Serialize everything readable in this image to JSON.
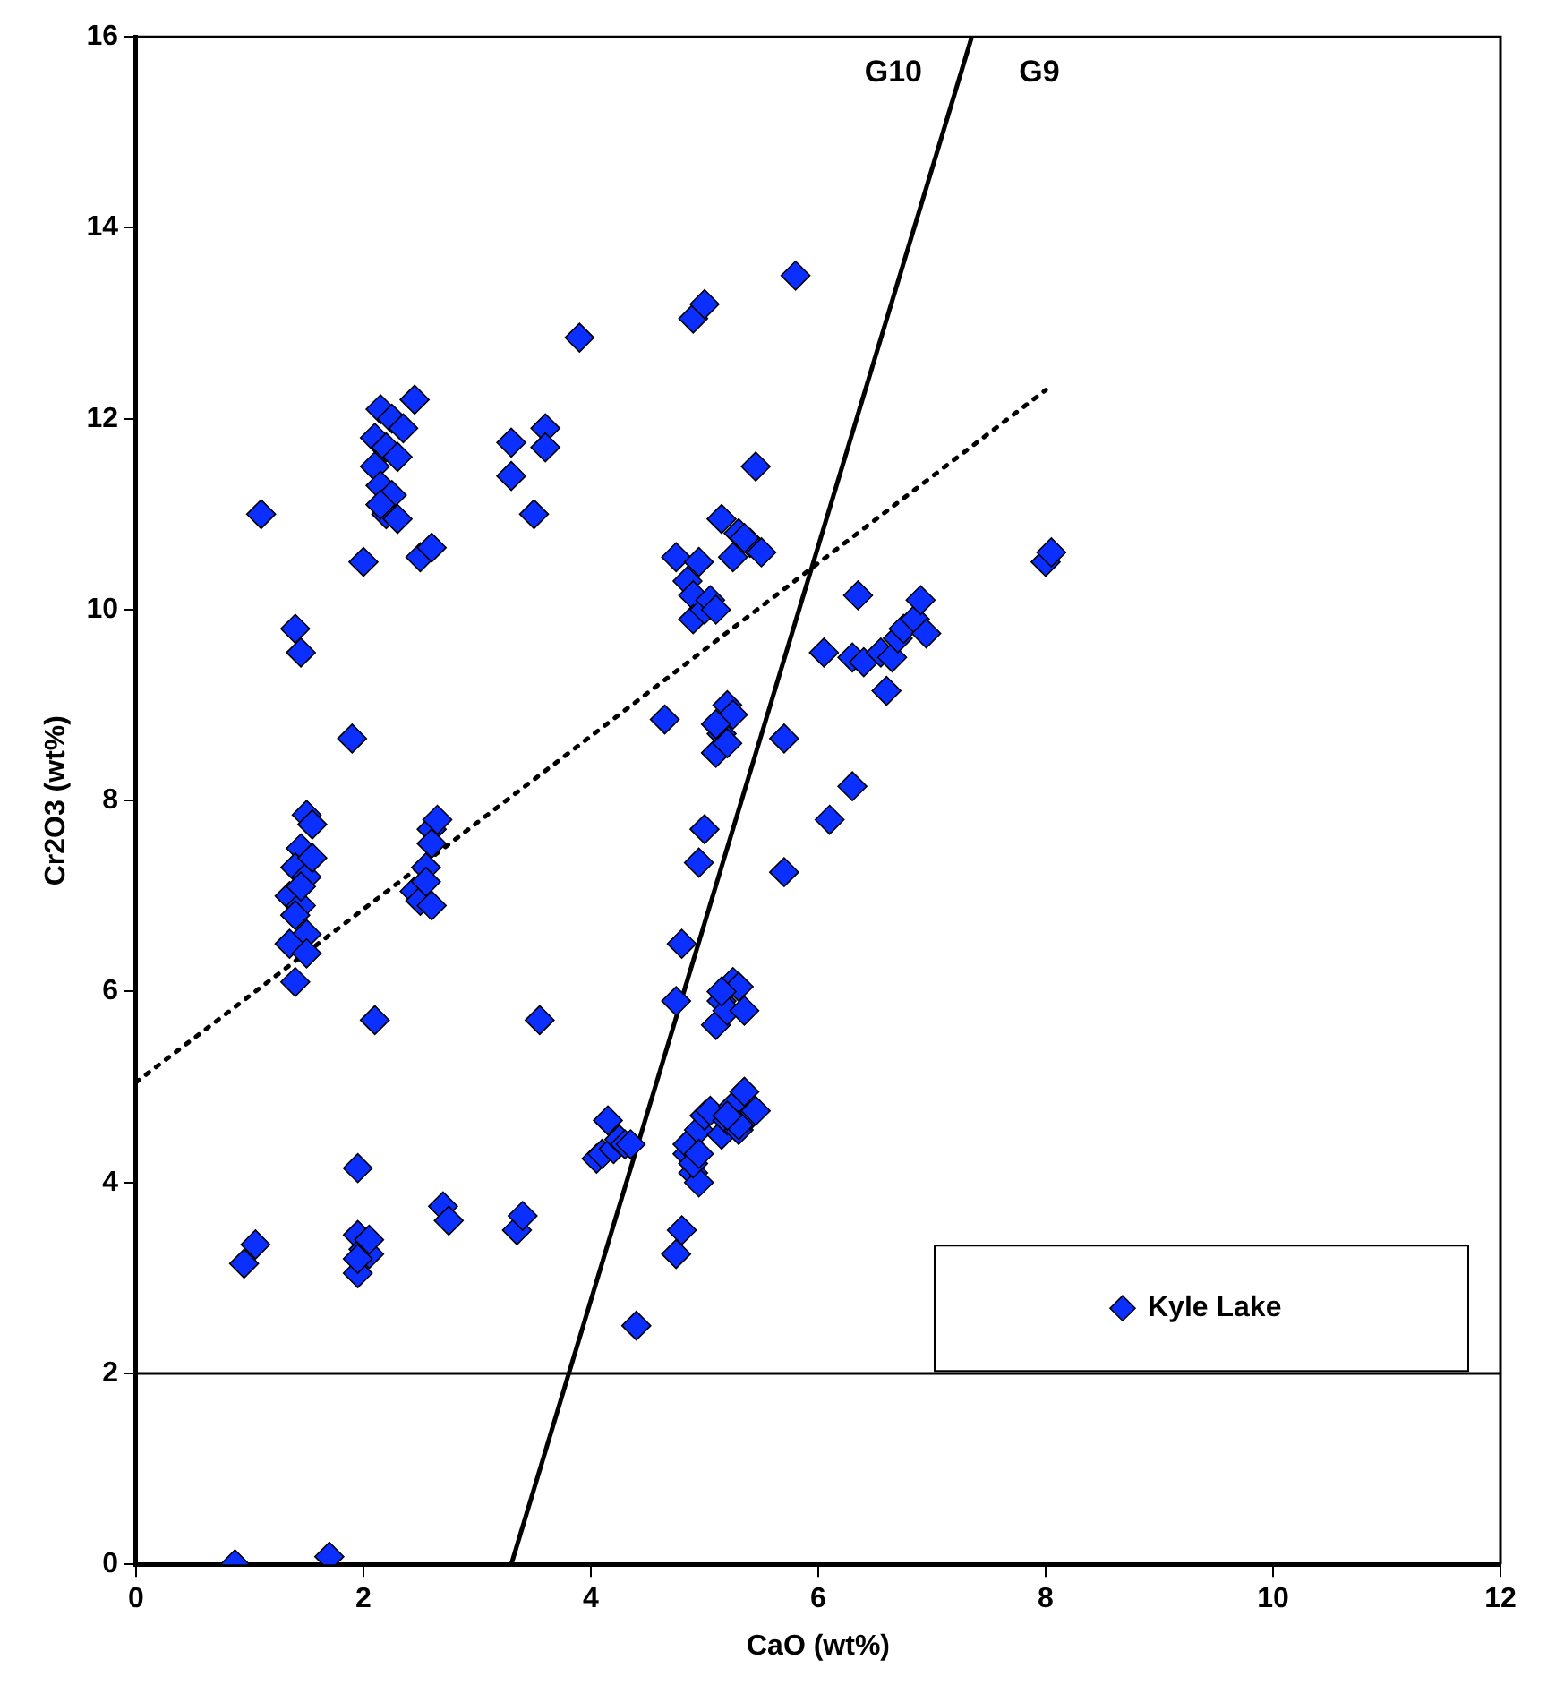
{
  "chart_data": {
    "type": "scatter",
    "xlabel": "CaO (wt%)",
    "ylabel": "Cr2O3 (wt%)",
    "xlim": [
      0,
      12
    ],
    "xticks": [
      0,
      2,
      4,
      6,
      8,
      10,
      12
    ],
    "ylim": [
      0,
      16
    ],
    "yticks": [
      0,
      2,
      4,
      6,
      8,
      10,
      12,
      14,
      16
    ],
    "grid": false,
    "legend": "bottom right",
    "annotations": [
      "G10",
      "G9"
    ],
    "ref_lines": [
      {
        "axis": "y",
        "value": 2,
        "color": "#000000",
        "line_style": "solid"
      }
    ],
    "series": [
      {
        "name": "Kyle Lake",
        "color": "#0b2fff",
        "marker": "diamond",
        "x": [
          0.87,
          1.7,
          0.95,
          1.05,
          1.1,
          1.4,
          1.45,
          1.5,
          1.55,
          1.45,
          1.4,
          1.5,
          1.35,
          1.45,
          1.4,
          1.5,
          1.35,
          1.5,
          1.4,
          1.45,
          1.55,
          1.9,
          1.95,
          1.95,
          2.0,
          1.95,
          2.05,
          2.05,
          1.95,
          2.0,
          2.1,
          2.15,
          2.25,
          2.1,
          2.2,
          2.1,
          2.3,
          2.15,
          2.25,
          2.2,
          2.3,
          2.15,
          2.35,
          2.45,
          2.5,
          2.6,
          2.6,
          2.65,
          2.6,
          2.45,
          2.5,
          2.6,
          2.55,
          2.55,
          2.7,
          2.75,
          3.35,
          3.4,
          3.3,
          3.3,
          3.5,
          3.6,
          3.6,
          3.9,
          3.55,
          4.05,
          4.1,
          4.15,
          4.2,
          4.25,
          4.3,
          4.4,
          4.35,
          4.65,
          4.75,
          4.8,
          4.8,
          4.75,
          4.85,
          4.9,
          4.95,
          4.85,
          4.95,
          5.0,
          4.9,
          4.95,
          5.05,
          4.75,
          4.85,
          4.9,
          4.95,
          4.9,
          5.0,
          5.05,
          5.1,
          4.9,
          5.0,
          5.8,
          5.0,
          4.95,
          5.1,
          5.15,
          5.2,
          5.25,
          5.2,
          5.1,
          5.15,
          5.1,
          5.2,
          5.25,
          5.3,
          5.35,
          5.15,
          5.15,
          5.2,
          5.3,
          5.25,
          5.35,
          5.4,
          5.45,
          5.3,
          5.2,
          5.15,
          5.25,
          5.3,
          5.4,
          5.5,
          5.45,
          5.35,
          5.7,
          5.7,
          6.05,
          6.1,
          6.3,
          6.3,
          6.35,
          6.4,
          6.55,
          6.6,
          6.65,
          6.7,
          6.75,
          6.85,
          6.9,
          6.95,
          8.0,
          8.05
        ],
        "values": [
          0,
          0.08,
          3.15,
          3.35,
          11.0,
          9.8,
          9.55,
          7.85,
          7.75,
          7.5,
          7.3,
          7.2,
          7.0,
          6.9,
          6.8,
          6.6,
          6.5,
          6.4,
          6.1,
          7.1,
          7.4,
          8.65,
          4.15,
          3.45,
          3.3,
          3.05,
          3.25,
          3.4,
          3.2,
          10.5,
          5.7,
          12.1,
          12.0,
          11.8,
          11.7,
          11.5,
          11.6,
          11.3,
          11.2,
          11.0,
          10.95,
          11.1,
          11.9,
          12.2,
          10.55,
          10.65,
          7.7,
          7.8,
          7.55,
          7.05,
          6.95,
          6.9,
          7.3,
          7.15,
          3.75,
          3.6,
          3.5,
          3.65,
          11.75,
          11.4,
          11.0,
          11.9,
          11.7,
          12.85,
          5.7,
          4.25,
          4.3,
          4.65,
          4.35,
          4.45,
          4.4,
          2.5,
          4.4,
          8.85,
          5.9,
          6.5,
          3.5,
          3.25,
          4.3,
          4.1,
          4.0,
          4.4,
          4.55,
          4.7,
          4.2,
          4.3,
          4.75,
          10.55,
          10.3,
          10.15,
          10.5,
          9.9,
          10.0,
          10.1,
          10.0,
          13.05,
          13.2,
          13.5,
          7.7,
          7.35,
          8.5,
          8.7,
          9.0,
          8.9,
          8.6,
          8.8,
          5.9,
          5.65,
          5.8,
          6.1,
          6.05,
          5.8,
          6.0,
          4.5,
          4.65,
          4.55,
          4.8,
          4.95,
          4.7,
          4.75,
          4.6,
          4.7,
          10.95,
          10.55,
          10.8,
          10.7,
          10.6,
          11.5,
          10.75,
          8.65,
          7.25,
          9.55,
          7.8,
          8.15,
          9.5,
          10.15,
          9.45,
          9.55,
          9.15,
          9.5,
          9.7,
          9.8,
          9.9,
          10.1,
          9.75,
          10.5,
          10.6
        ]
      },
      {
        "type": "line",
        "color": "#000000",
        "marker": "none",
        "line_style": "solid",
        "x": [
          3.3,
          7.35
        ],
        "values": [
          0,
          16
        ]
      },
      {
        "type": "line",
        "color": "#000000",
        "marker": "none",
        "line_style": "dotted",
        "x": [
          0,
          8.0
        ],
        "values": [
          5.05,
          12.3
        ]
      }
    ]
  }
}
